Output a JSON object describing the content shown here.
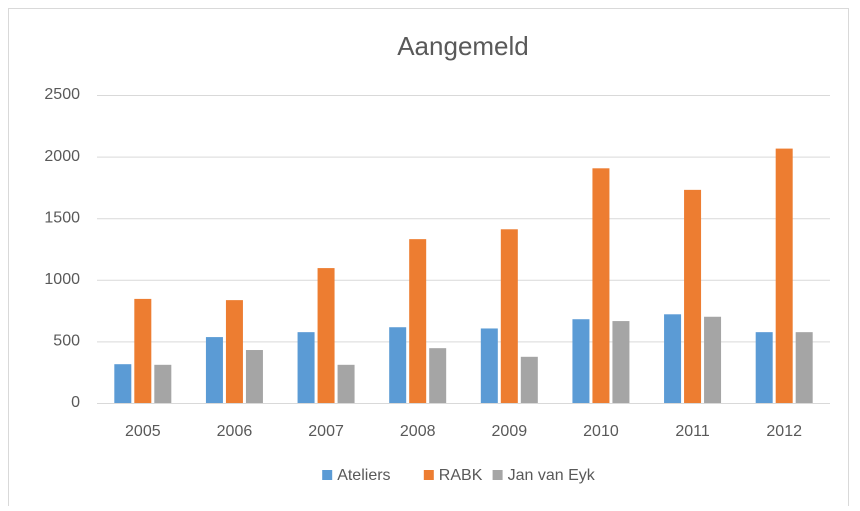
{
  "chart_data": {
    "type": "bar",
    "title": "Aangemeld",
    "categories": [
      "2005",
      "2006",
      "2007",
      "2008",
      "2009",
      "2010",
      "2011",
      "2012"
    ],
    "series": [
      {
        "name": "Ateliers",
        "color": "#5b9bd5",
        "values": [
          315,
          535,
          575,
          615,
          605,
          680,
          720,
          575
        ]
      },
      {
        "name": "RABK",
        "color": "#ed7d31",
        "values": [
          845,
          835,
          1095,
          1330,
          1410,
          1905,
          1730,
          2065
        ]
      },
      {
        "name": "Jan van Eyk",
        "color": "#a5a5a5",
        "values": [
          310,
          430,
          310,
          445,
          375,
          665,
          700,
          575
        ]
      }
    ],
    "ylim": [
      0,
      2500
    ],
    "yticks": [
      0,
      500,
      1000,
      1500,
      2000,
      2500
    ],
    "grid": true,
    "legend": "bottom"
  }
}
